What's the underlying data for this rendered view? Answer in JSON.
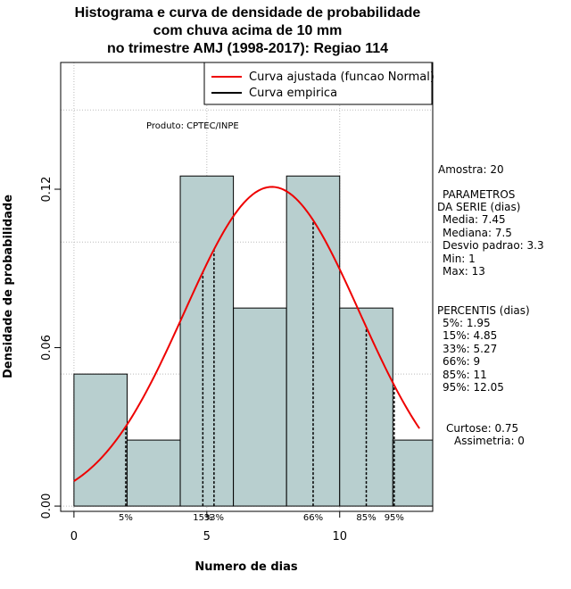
{
  "title_lines": [
    "Histograma e curva de densidade de probabilidade",
    "com chuva acima de 10 mm",
    "no trimestre AMJ (1998-2017): Regiao 114"
  ],
  "credit": "Produto: CPTEC/INPE",
  "side_panel": {
    "amostra": "Amostra: 20",
    "parametros_header": "PARAMETROS",
    "parametros_sub": "DA SERIE (dias)",
    "media": "Media: 7.45",
    "mediana": "Mediana: 7.5",
    "desvio": "Desvio padrao: 3.3",
    "min": "Min: 1",
    "max": "Max: 13",
    "percentis_header": "PERCENTIS (dias)",
    "p5": "5%: 1.95",
    "p15": "15%: 4.85",
    "p33": "33%: 5.27",
    "p66": "66%: 9",
    "p85": "85%: 11",
    "p95": "95%: 12.05",
    "curtose": "Curtose: 0.75",
    "assimetria": "Assimetria: 0"
  },
  "colors": {
    "bar_fill": "#b8cfcf",
    "fit_curve": "#ee0000",
    "empirical": "#000000",
    "grid": "#bbbbbb"
  },
  "chart_data": {
    "type": "bar",
    "xlabel": "Numero de dias",
    "ylabel": "Densidade de probabilidade",
    "xlim": [
      -0.5,
      13.5
    ],
    "ylim": [
      -0.002,
      0.168
    ],
    "x_ticks": [
      0,
      5,
      10
    ],
    "y_ticks": [
      0.0,
      0.06,
      0.12
    ],
    "y_tick_labels": [
      "0.00",
      "0.06",
      "0.12"
    ],
    "grid": true,
    "legend_position": "top-right",
    "legend": [
      {
        "label": "Curva ajustada (funcao Normal)",
        "color": "#ee0000"
      },
      {
        "label": "Curva empirica",
        "color": "#000000"
      }
    ],
    "bins": [
      {
        "x0": 0,
        "x1": 2,
        "density": 0.05
      },
      {
        "x0": 2,
        "x1": 4,
        "density": 0.025
      },
      {
        "x0": 4,
        "x1": 6,
        "density": 0.125
      },
      {
        "x0": 6,
        "x1": 8,
        "density": 0.075
      },
      {
        "x0": 8,
        "x1": 10,
        "density": 0.125
      },
      {
        "x0": 10,
        "x1": 12,
        "density": 0.075
      },
      {
        "x0": 12,
        "x1": 14,
        "density": 0.025
      }
    ],
    "normal_fit": {
      "mean": 7.45,
      "sd": 3.3,
      "x_range": [
        0,
        13
      ]
    },
    "percentile_lines": [
      {
        "label": "5%",
        "x": 1.95
      },
      {
        "label": "15%",
        "x": 4.85
      },
      {
        "label": "33%",
        "x": 5.27
      },
      {
        "label": "66%",
        "x": 9
      },
      {
        "label": "85%",
        "x": 11
      },
      {
        "label": "95%",
        "x": 12.05
      }
    ]
  }
}
